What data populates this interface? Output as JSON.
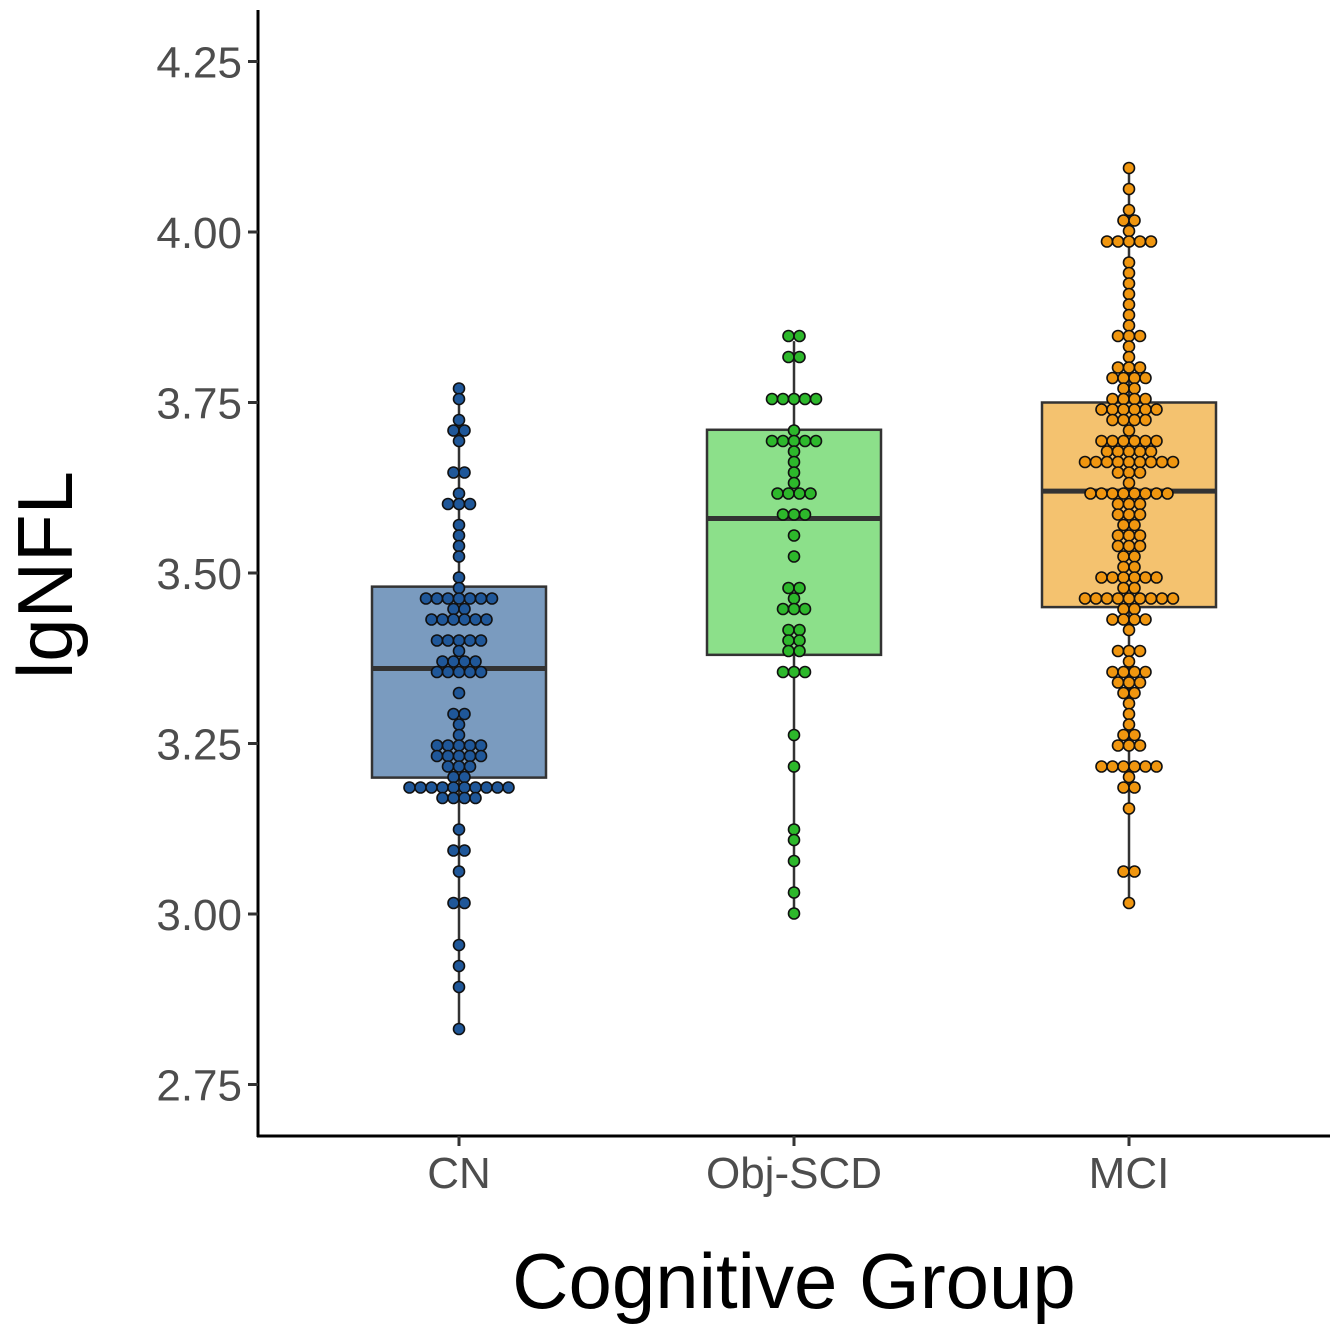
{
  "chart_data": {
    "type": "box",
    "xlabel": "Cognitive Group",
    "ylabel": "lgNFL",
    "ylim": [
      2.68,
      4.32
    ],
    "yticks": [
      "2.75",
      "3.00",
      "3.25",
      "3.50",
      "3.75",
      "4.00",
      "4.25"
    ],
    "grid": false,
    "legend": "none",
    "categories": [
      "CN",
      "Obj-SCD",
      "MCI"
    ],
    "groups": [
      {
        "name": "CN",
        "fill": "#7a9bbf",
        "point_color": "#1f5799",
        "box": {
          "min": 2.83,
          "q1": 3.2,
          "median": 3.36,
          "q3": 3.48,
          "max": 3.77
        },
        "points": [
          3.77,
          3.75,
          3.72,
          3.71,
          3.71,
          3.7,
          3.65,
          3.65,
          3.62,
          3.6,
          3.6,
          3.6,
          3.57,
          3.56,
          3.54,
          3.52,
          3.49,
          3.48,
          3.47,
          3.47,
          3.47,
          3.47,
          3.47,
          3.47,
          3.46,
          3.45,
          3.45,
          3.43,
          3.43,
          3.43,
          3.43,
          3.43,
          3.43,
          3.4,
          3.4,
          3.4,
          3.4,
          3.4,
          3.38,
          3.37,
          3.37,
          3.37,
          3.37,
          3.36,
          3.36,
          3.36,
          3.36,
          3.36,
          3.33,
          3.3,
          3.3,
          3.28,
          3.27,
          3.25,
          3.25,
          3.25,
          3.25,
          3.24,
          3.23,
          3.23,
          3.23,
          3.23,
          3.23,
          3.21,
          3.21,
          3.21,
          3.2,
          3.2,
          3.19,
          3.19,
          3.19,
          3.18,
          3.18,
          3.18,
          3.18,
          3.18,
          3.18,
          3.18,
          3.17,
          3.17,
          3.17,
          3.17,
          3.12,
          3.09,
          3.09,
          3.06,
          3.02,
          3.02,
          2.96,
          2.92,
          2.9,
          2.83
        ]
      },
      {
        "name": "Obj-SCD",
        "fill": "#8ce08a",
        "point_color": "#2db82b",
        "box": {
          "min": 3.0,
          "q1": 3.38,
          "median": 3.58,
          "q3": 3.71,
          "max": 3.84
        },
        "points": [
          3.84,
          3.84,
          3.82,
          3.81,
          3.76,
          3.76,
          3.76,
          3.75,
          3.75,
          3.71,
          3.7,
          3.7,
          3.7,
          3.7,
          3.7,
          3.68,
          3.66,
          3.64,
          3.63,
          3.62,
          3.61,
          3.61,
          3.61,
          3.59,
          3.59,
          3.58,
          3.56,
          3.53,
          3.48,
          3.48,
          3.46,
          3.45,
          3.45,
          3.44,
          3.42,
          3.42,
          3.4,
          3.4,
          3.38,
          3.38,
          3.35,
          3.35,
          3.35,
          3.26,
          3.21,
          3.12,
          3.11,
          3.08,
          3.03,
          3.0
        ]
      },
      {
        "name": "MCI",
        "fill": "#f4c26f",
        "point_color": "#f0960f",
        "box": {
          "min": 3.01,
          "q1": 3.45,
          "median": 3.62,
          "q3": 3.75,
          "max": 4.09
        },
        "points": [
          4.09,
          4.06,
          4.03,
          4.02,
          4.01,
          4.0,
          3.99,
          3.99,
          3.99,
          3.98,
          3.98,
          3.96,
          3.94,
          3.93,
          3.91,
          3.9,
          3.88,
          3.87,
          3.85,
          3.84,
          3.84,
          3.83,
          3.82,
          3.8,
          3.8,
          3.8,
          3.79,
          3.78,
          3.78,
          3.78,
          3.77,
          3.77,
          3.76,
          3.76,
          3.75,
          3.75,
          3.74,
          3.74,
          3.74,
          3.74,
          3.74,
          3.74,
          3.73,
          3.73,
          3.72,
          3.72,
          3.71,
          3.7,
          3.7,
          3.7,
          3.7,
          3.69,
          3.69,
          3.68,
          3.68,
          3.68,
          3.68,
          3.68,
          3.66,
          3.66,
          3.66,
          3.66,
          3.66,
          3.66,
          3.66,
          3.66,
          3.66,
          3.65,
          3.64,
          3.64,
          3.63,
          3.62,
          3.62,
          3.62,
          3.62,
          3.61,
          3.61,
          3.61,
          3.61,
          3.6,
          3.6,
          3.6,
          3.59,
          3.59,
          3.58,
          3.57,
          3.57,
          3.55,
          3.55,
          3.55,
          3.54,
          3.54,
          3.54,
          3.53,
          3.52,
          3.51,
          3.51,
          3.5,
          3.5,
          3.5,
          3.5,
          3.49,
          3.49,
          3.48,
          3.48,
          3.47,
          3.46,
          3.46,
          3.46,
          3.46,
          3.46,
          3.46,
          3.46,
          3.46,
          3.45,
          3.45,
          3.43,
          3.43,
          3.43,
          3.43,
          3.41,
          3.39,
          3.39,
          3.38,
          3.37,
          3.36,
          3.35,
          3.35,
          3.35,
          3.34,
          3.34,
          3.34,
          3.33,
          3.32,
          3.31,
          3.3,
          3.28,
          3.27,
          3.26,
          3.25,
          3.24,
          3.24,
          3.22,
          3.21,
          3.21,
          3.21,
          3.21,
          3.21,
          3.2,
          3.19,
          3.18,
          3.15,
          3.06,
          3.06,
          3.01
        ]
      }
    ]
  }
}
